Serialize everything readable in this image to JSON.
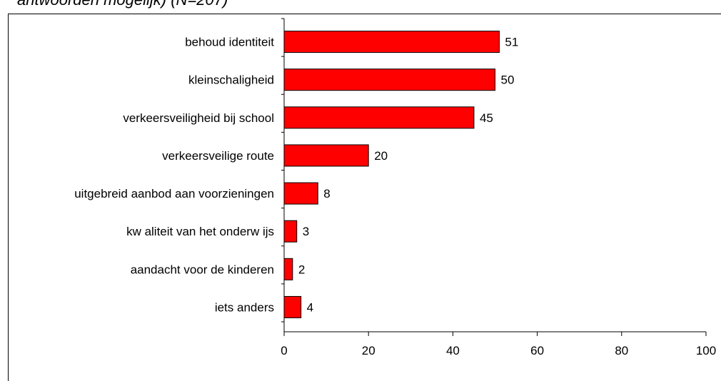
{
  "title_fragment": "antwoorden mogelijk) (N=207)",
  "chart_data": {
    "type": "bar",
    "orientation": "horizontal",
    "categories": [
      "behoud identiteit",
      "kleinschaligheid",
      "verkeersveiligheid bij school",
      "verkeersveilige route",
      "uitgebreid aanbod aan voorzieningen",
      "kw aliteit van het onderw ijs",
      "aandacht voor de kinderen",
      "iets anders"
    ],
    "values": [
      51,
      50,
      45,
      20,
      8,
      3,
      2,
      4
    ],
    "value_labels": [
      "51",
      "50",
      "45",
      "20",
      "8",
      "3",
      "2",
      "4"
    ],
    "xticks": [
      "0",
      "20",
      "40",
      "60",
      "80",
      "100"
    ],
    "xlim": [
      0,
      100
    ],
    "bar_color": "#ff0000",
    "grid": false,
    "legend": false
  }
}
